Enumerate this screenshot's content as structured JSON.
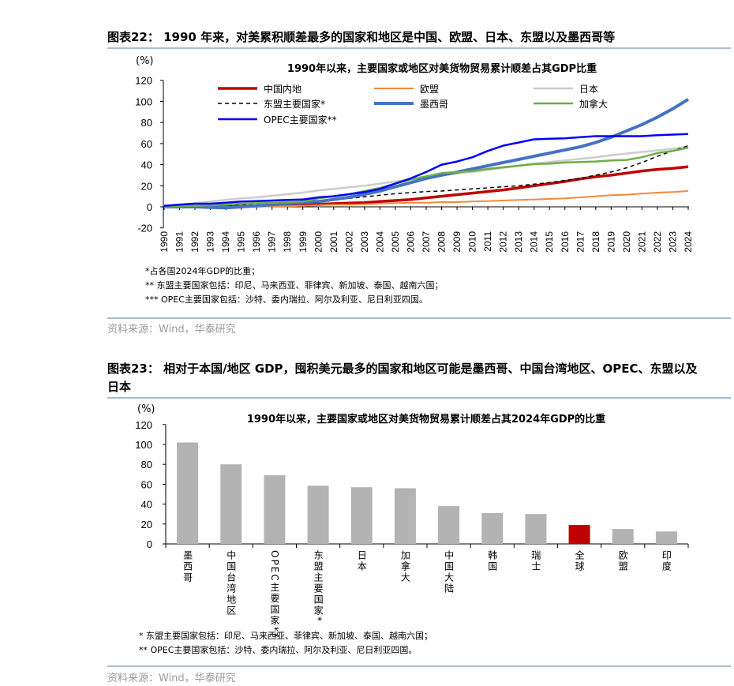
{
  "figure22": {
    "heading": "图表22： 1990 年来，对美累积顺差最多的国家和地区是中国、欧盟、日本、东盟以及墨西哥等",
    "notes": [
      "*占各国2024年GDP的比重；",
      "** 东盟主要国家包括：印尼、马来西亚、菲律宾、新加坡、泰国、越南六国；",
      "*** OPEC主要国家包括：沙特、委内瑞拉、阿尔及利亚、尼日利亚四国。"
    ],
    "source": "资料来源：Wind，华泰研究"
  },
  "figure23": {
    "heading_line1": "图表23： 相对于本国/地区 GDP，囤积美元最多的国家和地区可能是墨西哥、中国台湾地区、OPEC、东盟以及",
    "heading_line2": "日本",
    "notes": [
      "* 东盟主要国家包括：印尼、马来西亚、菲律宾、新加坡、泰国、越南六国；",
      "** OPEC主要国家包括：沙特、委内瑞拉、阿尔及利亚、尼日利亚四国。"
    ],
    "source": "资料来源：Wind，华泰研究"
  },
  "chart_data": [
    {
      "type": "line",
      "title": "1990年以来，主要国家或地区对美货物贸易累计顺差占其GDP比重",
      "ylabel": "(%)",
      "ylim": [
        -20,
        120
      ],
      "yticks": [
        120,
        100,
        80,
        60,
        40,
        20,
        0,
        -20
      ],
      "legend": "top",
      "grid": false,
      "x": [
        "1990",
        "1991",
        "1992",
        "1993",
        "1994",
        "1995",
        "1996",
        "1997",
        "1998",
        "1999",
        "2000",
        "2001",
        "2002",
        "2003",
        "2004",
        "2005",
        "2006",
        "2007",
        "2008",
        "2009",
        "2010",
        "2011",
        "2012",
        "2013",
        "2014",
        "2015",
        "2016",
        "2017",
        "2018",
        "2019",
        "2020",
        "2021",
        "2022",
        "2023",
        "2024"
      ],
      "series": [
        {
          "name": "中国内地",
          "color": "#c00000",
          "width": 3.5,
          "dash": "",
          "values": [
            0,
            0,
            0,
            0,
            0,
            0.5,
            1,
            1,
            1.5,
            2,
            2.5,
            3,
            3.5,
            4,
            5,
            6,
            7,
            8.5,
            10,
            11.5,
            13,
            14.5,
            16,
            18,
            20,
            22,
            24,
            26.5,
            28.5,
            30,
            32,
            34,
            35.5,
            36.5,
            38
          ]
        },
        {
          "name": "欧盟",
          "color": "#f28a3c",
          "width": 2,
          "dash": "",
          "values": [
            0,
            0,
            0,
            0,
            0,
            0,
            0,
            0.5,
            0.5,
            1,
            1.5,
            2,
            2,
            2.5,
            3,
            3.5,
            4,
            4,
            4.5,
            4.5,
            5,
            5.5,
            6,
            6.5,
            7,
            7.5,
            8,
            9,
            10,
            11,
            11.5,
            12.5,
            13.5,
            14,
            15
          ]
        },
        {
          "name": "日本",
          "color": "#cccccc",
          "width": 2.5,
          "dash": "",
          "values": [
            0,
            2,
            3.5,
            5,
            6.5,
            8,
            9,
            10.5,
            12,
            13.5,
            15.5,
            17,
            18.5,
            20,
            22,
            24,
            26,
            28,
            30,
            31.5,
            33,
            35,
            37,
            39,
            41,
            42.5,
            44,
            45.5,
            47,
            49,
            50.5,
            52,
            53.5,
            55,
            57
          ]
        },
        {
          "name": "东盟主要国家*",
          "color": "#000000",
          "width": 1.5,
          "dash": "5,4",
          "values": [
            0,
            0,
            0.5,
            1,
            1.5,
            2,
            3,
            3.5,
            4.5,
            5,
            6,
            7,
            8,
            9.5,
            11,
            12.5,
            13.5,
            14.5,
            15,
            16,
            17,
            18,
            19,
            20,
            21.5,
            23,
            25,
            27,
            30,
            33,
            37,
            42,
            48,
            53,
            58
          ]
        },
        {
          "name": "墨西哥",
          "color": "#4472c4",
          "width": 4,
          "dash": "",
          "values": [
            0,
            0,
            0,
            -0.5,
            -1,
            0,
            1,
            2,
            3,
            4,
            5,
            7,
            9,
            12,
            15,
            19,
            23,
            27,
            30,
            33,
            36,
            39,
            42,
            45,
            48,
            51,
            54,
            57,
            61,
            66,
            72,
            78,
            85,
            93,
            102
          ]
        },
        {
          "name": "加拿大",
          "color": "#70ad47",
          "width": 2.5,
          "dash": "",
          "values": [
            0,
            0.5,
            1,
            1.5,
            2,
            3,
            3.5,
            4,
            4.5,
            5,
            8,
            10,
            12,
            15,
            18,
            22,
            26,
            29,
            32,
            33,
            34,
            36,
            37.5,
            39,
            40.5,
            41,
            42,
            42.5,
            43,
            44,
            44.5,
            47,
            51,
            53,
            56
          ]
        },
        {
          "name": "OPEC主要国家**",
          "color": "#0000ff",
          "width": 2.5,
          "dash": "",
          "values": [
            1,
            2,
            3,
            3,
            4,
            5,
            5.5,
            6,
            6.5,
            7,
            9,
            10,
            12,
            14,
            17,
            22,
            27,
            33,
            40,
            43,
            47,
            53,
            58,
            61,
            64,
            64.5,
            65,
            66,
            67,
            67,
            67,
            67,
            68,
            68.5,
            69
          ]
        }
      ]
    },
    {
      "type": "bar",
      "title": "1990年以来，主要国家或地区对美货物贸易累计顺差占其2024年GDP的比重",
      "ylabel": "(%)",
      "ylim": [
        0,
        120
      ],
      "yticks": [
        120,
        100,
        80,
        60,
        40,
        20,
        0
      ],
      "grid": false,
      "categories": [
        "墨西哥",
        "中国台湾地区",
        "OPEC主要国家**",
        "东盟主要国家*",
        "日本",
        "加拿大",
        "中国大陆",
        "韩国",
        "瑞士",
        "全球",
        "欧盟",
        "印度"
      ],
      "values": [
        102,
        80,
        69,
        58.5,
        57,
        56,
        38,
        31,
        30,
        19,
        15,
        12.5
      ],
      "colors": [
        "#b3b3b3",
        "#b3b3b3",
        "#b3b3b3",
        "#b3b3b3",
        "#b3b3b3",
        "#b3b3b3",
        "#b3b3b3",
        "#b3b3b3",
        "#b3b3b3",
        "#c00000",
        "#b3b3b3",
        "#b3b3b3"
      ]
    }
  ]
}
